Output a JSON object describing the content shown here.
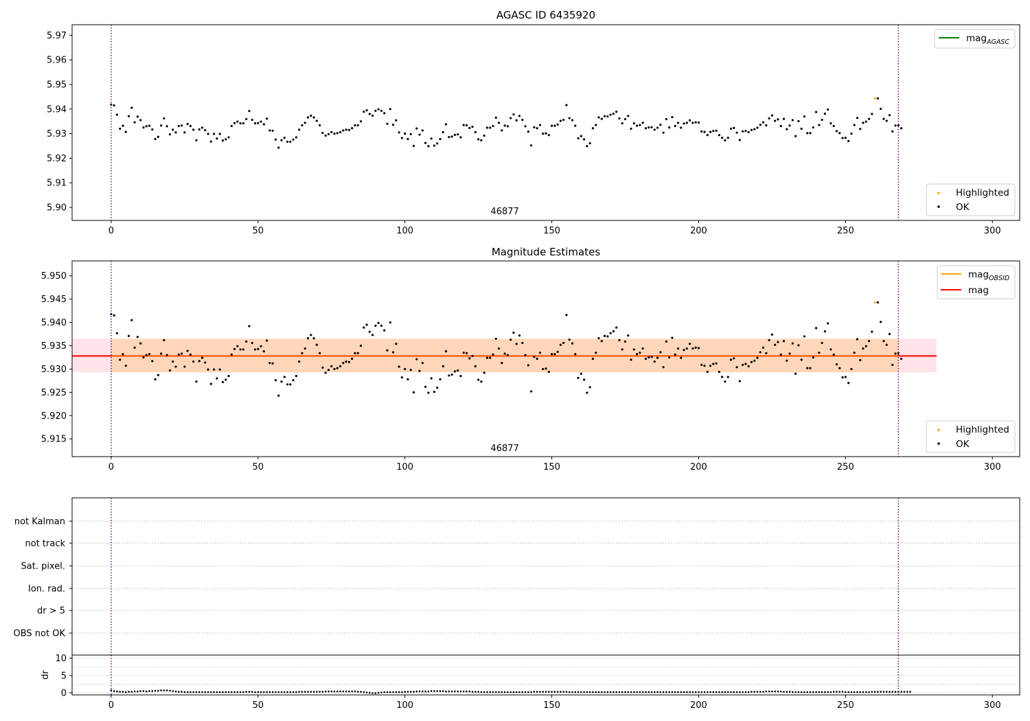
{
  "chart_data": [
    {
      "type": "scatter",
      "title": "AGASC ID 6435920",
      "xlim": [
        -13.3,
        309.3
      ],
      "ylim": [
        5.8947,
        5.9743
      ],
      "xticks": [
        0,
        50,
        100,
        150,
        200,
        250,
        300
      ],
      "yticks": [
        5.9,
        5.91,
        5.92,
        5.93,
        5.94,
        5.95,
        5.96,
        5.97
      ],
      "ytick_labels": [
        "5.90",
        "5.91",
        "5.92",
        "5.93",
        "5.94",
        "5.95",
        "5.96",
        "5.97"
      ],
      "vlines": [
        0,
        268
      ],
      "obsid_annotation": {
        "x": 134,
        "text": "46877"
      },
      "legend_lines": [
        {
          "label": "mag",
          "subscript": "AGASC",
          "color": "#008000"
        }
      ],
      "legend_points": [
        {
          "label": "Highlighted",
          "color": "#ffa500"
        },
        {
          "label": "OK",
          "color": "#000000"
        }
      ],
      "highlighted": [
        [
          260,
          5.9443
        ]
      ]
    },
    {
      "type": "scatter",
      "title": "Magnitude Estimates",
      "xlim": [
        -13.3,
        309.3
      ],
      "ylim": [
        5.9112,
        5.9532
      ],
      "xticks": [
        0,
        50,
        100,
        150,
        200,
        250,
        300
      ],
      "yticks": [
        5.915,
        5.92,
        5.925,
        5.93,
        5.935,
        5.94,
        5.945,
        5.95
      ],
      "ytick_labels": [
        "5.915",
        "5.920",
        "5.925",
        "5.930",
        "5.935",
        "5.940",
        "5.945",
        "5.950"
      ],
      "vlines": [
        0,
        268
      ],
      "mean_mag": 5.9328,
      "band": [
        5.9293,
        5.9365
      ],
      "band_xrange": [
        -13.3,
        281
      ],
      "obsid_annotation": {
        "x": 134,
        "text": "46877"
      },
      "legend_lines": [
        {
          "label": "mag",
          "subscript": "OBSID",
          "color": "#ffa500"
        },
        {
          "label": "mag",
          "subscript": "",
          "color": "#ff0000"
        }
      ],
      "legend_points": [
        {
          "label": "Highlighted",
          "color": "#ffa500"
        },
        {
          "label": "OK",
          "color": "#000000"
        }
      ],
      "highlighted": [
        [
          260,
          5.9443
        ]
      ]
    },
    {
      "type": "table",
      "flag_rows": [
        "OBS not OK",
        "dr > 5",
        "Ion. rad.",
        "Sat. pixel.",
        "not track",
        "not Kalman"
      ],
      "vlines": [
        0,
        268
      ]
    },
    {
      "type": "scatter",
      "ylabel": "dr",
      "xlim": [
        -13.3,
        309.3
      ],
      "ylim": [
        -0.6,
        10.9
      ],
      "xticks": [
        0,
        50,
        100,
        150,
        200,
        250,
        300
      ],
      "yticks": [
        0,
        5,
        10
      ],
      "ytick_labels": [
        "0",
        "5",
        "10"
      ],
      "vlines": [
        0,
        268
      ]
    }
  ],
  "series_mag": [
    5.9418,
    5.9415,
    5.9377,
    5.932,
    5.9332,
    5.9307,
    5.9371,
    5.9405,
    5.9346,
    5.9369,
    5.9355,
    5.9325,
    5.933,
    5.9332,
    5.9317,
    5.9278,
    5.9287,
    5.9333,
    5.9362,
    5.933,
    5.9297,
    5.9316,
    5.9305,
    5.9331,
    5.9333,
    5.9305,
    5.9339,
    5.9331,
    5.9316,
    5.9273,
    5.9317,
    5.9324,
    5.9314,
    5.9299,
    5.9268,
    5.9299,
    5.928,
    5.9299,
    5.9272,
    5.9277,
    5.9285,
    5.9331,
    5.9343,
    5.9349,
    5.9342,
    5.9342,
    5.9359,
    5.9392,
    5.9356,
    5.9342,
    5.9343,
    5.9349,
    5.9338,
    5.9361,
    5.9313,
    5.9312,
    5.9276,
    5.9243,
    5.9273,
    5.9283,
    5.9267,
    5.9267,
    5.9276,
    5.9285,
    5.9316,
    5.9334,
    5.9344,
    5.9366,
    5.9373,
    5.9366,
    5.9352,
    5.9334,
    5.9303,
    5.9292,
    5.9298,
    5.9306,
    5.93,
    5.9302,
    5.9306,
    5.9313,
    5.9316,
    5.9315,
    5.9322,
    5.9334,
    5.9334,
    5.935,
    5.9389,
    5.9395,
    5.938,
    5.9373,
    5.9393,
    5.9399,
    5.9393,
    5.9383,
    5.934,
    5.94,
    5.9336,
    5.9354,
    5.9305,
    5.9282,
    5.93,
    5.9278,
    5.9298,
    5.925,
    5.9321,
    5.9296,
    5.9313,
    5.9262,
    5.9249,
    5.928,
    5.9251,
    5.926,
    5.9278,
    5.9306,
    5.9338,
    5.9286,
    5.9288,
    5.9295,
    5.9297,
    5.9285,
    5.9335,
    5.9334,
    5.9323,
    5.9328,
    5.9306,
    5.9277,
    5.9273,
    5.9292,
    5.9324,
    5.9324,
    5.9331,
    5.9365,
    5.9344,
    5.9313,
    5.9333,
    5.933,
    5.9363,
    5.9378,
    5.9354,
    5.9372,
    5.9356,
    5.933,
    5.9308,
    5.9252,
    5.9326,
    5.9322,
    5.9335,
    5.93,
    5.9301,
    5.9294,
    5.9332,
    5.9332,
    5.9337,
    5.9352,
    5.9356,
    5.9416,
    5.9363,
    5.9355,
    5.9332,
    5.9281,
    5.929,
    5.9277,
    5.9249,
    5.9261,
    5.9322,
    5.9335,
    5.9366,
    5.936,
    5.9371,
    5.937,
    5.9377,
    5.9381,
    5.9389,
    5.9362,
    5.9342,
    5.9359,
    5.9372,
    5.932,
    5.9342,
    5.9332,
    5.9335,
    5.9344,
    5.9322,
    5.9325,
    5.9326,
    5.9316,
    5.9324,
    5.9336,
    5.9304,
    5.9359,
    5.9325,
    5.9367,
    5.9331,
    5.9344,
    5.9324,
    5.9341,
    5.9344,
    5.9354,
    5.9344,
    5.9346,
    5.9345,
    5.9309,
    5.9307,
    5.9294,
    5.9307,
    5.9311,
    5.9312,
    5.9294,
    5.9283,
    5.9273,
    5.9283,
    5.932,
    5.9323,
    5.9304,
    5.9274,
    5.9309,
    5.9311,
    5.9306,
    5.9315,
    5.9318,
    5.9324,
    5.9336,
    5.9346,
    5.9334,
    5.9362,
    5.9374,
    5.9352,
    5.9358,
    5.9331,
    5.936,
    5.9318,
    5.9333,
    5.9355,
    5.929,
    5.9351,
    5.932,
    5.937,
    5.9302,
    5.9302,
    5.9325,
    5.9388,
    5.9335,
    5.9356,
    5.9381,
    5.9398,
    5.9342,
    5.9331,
    5.931,
    5.9302,
    5.9282,
    5.9283,
    5.927,
    5.93,
    5.9335,
    5.9364,
    5.9319,
    5.9344,
    5.9349,
    5.936,
    5.938,
    5.939,
    5.9443,
    5.9401,
    5.936,
    5.9352,
    5.9375,
    5.9309,
    5.9333,
    5.9334,
    5.9322
  ],
  "series_dr": [
    0.7,
    0.5,
    0.4,
    0.3,
    0.3,
    0.2,
    0.3,
    0.3,
    0.4,
    0.4,
    0.5,
    0.5,
    0.4,
    0.5,
    0.5,
    0.6,
    0.6,
    0.7,
    0.7,
    0.7,
    0.6,
    0.5,
    0.4,
    0.3,
    0.3,
    0.2,
    0.2,
    0.2,
    0.2,
    0.2,
    0.2,
    0.2,
    0.2,
    0.2,
    0.2,
    0.2,
    0.2,
    0.2,
    0.2,
    0.2,
    0.2,
    0.2,
    0.2,
    0.2,
    0.2,
    0.2,
    0.3,
    0.3,
    0.3,
    0.2,
    0.2,
    0.2,
    0.2,
    0.2,
    0.2,
    0.2,
    0.2,
    0.2,
    0.2,
    0.2,
    0.2,
    0.2,
    0.2,
    0.2,
    0.3,
    0.3,
    0.3,
    0.3,
    0.3,
    0.3,
    0.3,
    0.3,
    0.3,
    0.4,
    0.4,
    0.4,
    0.4,
    0.4,
    0.4,
    0.4,
    0.4,
    0.4,
    0.4,
    0.4,
    0.3,
    0.3,
    0.2,
    0.1,
    0.0,
    -0.1,
    -0.1,
    0.0,
    0.1,
    0.2,
    0.2,
    0.2,
    0.2,
    0.2,
    0.2,
    0.2,
    0.3,
    0.3,
    0.3,
    0.3,
    0.4,
    0.4,
    0.4,
    0.4,
    0.4,
    0.5,
    0.5,
    0.5,
    0.5,
    0.5,
    0.4,
    0.4,
    0.4,
    0.4,
    0.4,
    0.4,
    0.4,
    0.4,
    0.4,
    0.3,
    0.3,
    0.3,
    0.2,
    0.2,
    0.2,
    0.2,
    0.2,
    0.2,
    0.2,
    0.2,
    0.2,
    0.2,
    0.2,
    0.2,
    0.2,
    0.2,
    0.2,
    0.2,
    0.2,
    0.2,
    0.3,
    0.3,
    0.3,
    0.3,
    0.3,
    0.3,
    0.3,
    0.3,
    0.3,
    0.3,
    0.3,
    0.3,
    0.2,
    0.2,
    0.2,
    0.2,
    0.2,
    0.2,
    0.2,
    0.2,
    0.2,
    0.2,
    0.2,
    0.2,
    0.2,
    0.2,
    0.2,
    0.2,
    0.2,
    0.2,
    0.2,
    0.2,
    0.2,
    0.2,
    0.2,
    0.2,
    0.2,
    0.2,
    0.2,
    0.2,
    0.2,
    0.2,
    0.2,
    0.2,
    0.2,
    0.2,
    0.2,
    0.2,
    0.2,
    0.2,
    0.2,
    0.2,
    0.2,
    0.2,
    0.2,
    0.2,
    0.2,
    0.2,
    0.2,
    0.2,
    0.2,
    0.2,
    0.2,
    0.2,
    0.2,
    0.2,
    0.2,
    0.2,
    0.2,
    0.2,
    0.2,
    0.2,
    0.2,
    0.2,
    0.3,
    0.3,
    0.3,
    0.3,
    0.3,
    0.4,
    0.4,
    0.4,
    0.4,
    0.4,
    0.4,
    0.3,
    0.3,
    0.3,
    0.2,
    0.2,
    0.2,
    0.2,
    0.2,
    0.2,
    0.2,
    0.2,
    0.2,
    0.2,
    0.2,
    0.2,
    0.2,
    0.2,
    0.3,
    0.3,
    0.3,
    0.3,
    0.2,
    0.2,
    0.2,
    0.2,
    0.2,
    0.2,
    0.2,
    0.2,
    0.2,
    0.3,
    0.3,
    0.3,
    0.3,
    0.3,
    0.3,
    0.3,
    0.3,
    0.3,
    0.3,
    0.3,
    0.3,
    0.3,
    0.3
  ]
}
